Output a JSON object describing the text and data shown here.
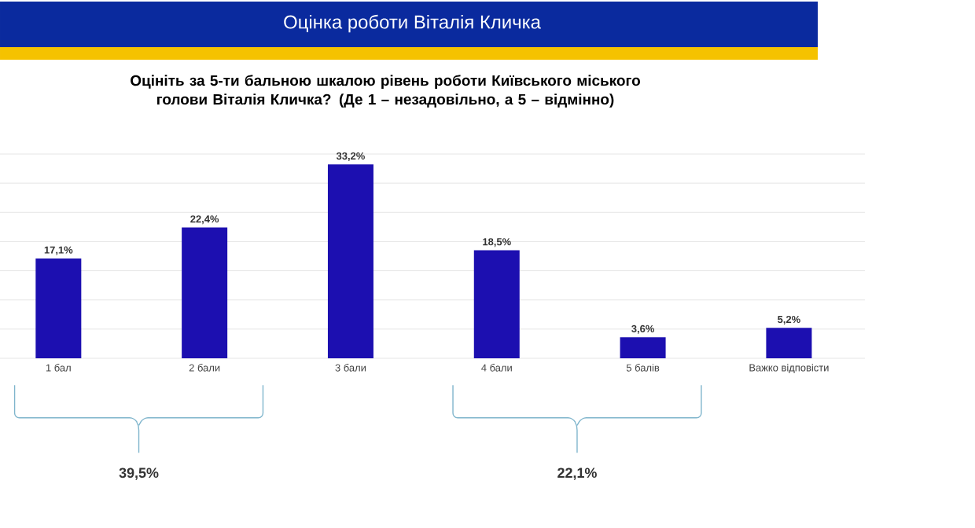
{
  "chart_data": {
    "type": "bar",
    "title": "Оцінка роботи Віталія Кличка",
    "subtitle": "Оцініть за 5-ти бальною шкалою рівень роботи Київського міського голови Віталія Кличка? (Де 1 – незадовільно, а 5 – відмінно)",
    "categories": [
      "1 бал",
      "2 бали",
      "3 бали",
      "4 бали",
      "5 балів",
      "Важко відповісти"
    ],
    "values": [
      17.1,
      22.4,
      33.2,
      18.5,
      3.6,
      5.2
    ],
    "value_labels": [
      "17,1%",
      "22,4%",
      "33,2%",
      "18,5%",
      "3,6%",
      "5,2%"
    ],
    "color": "#1c0fb0",
    "ylim": [
      0,
      35
    ],
    "yticks": [
      {
        "value": 0,
        "label": null
      },
      {
        "value": 5,
        "label": null
      },
      {
        "value": 10,
        "label": null
      },
      {
        "value": 15,
        "label": null
      },
      {
        "value": 20,
        "label": null
      },
      {
        "value": 25,
        "label": null
      },
      {
        "value": 30,
        "label": null
      },
      {
        "value": 35,
        "label": null
      }
    ],
    "tick_labels": "x",
    "grid": "y",
    "annotations": [
      "39,5%",
      "22,1%"
    ]
  }
}
